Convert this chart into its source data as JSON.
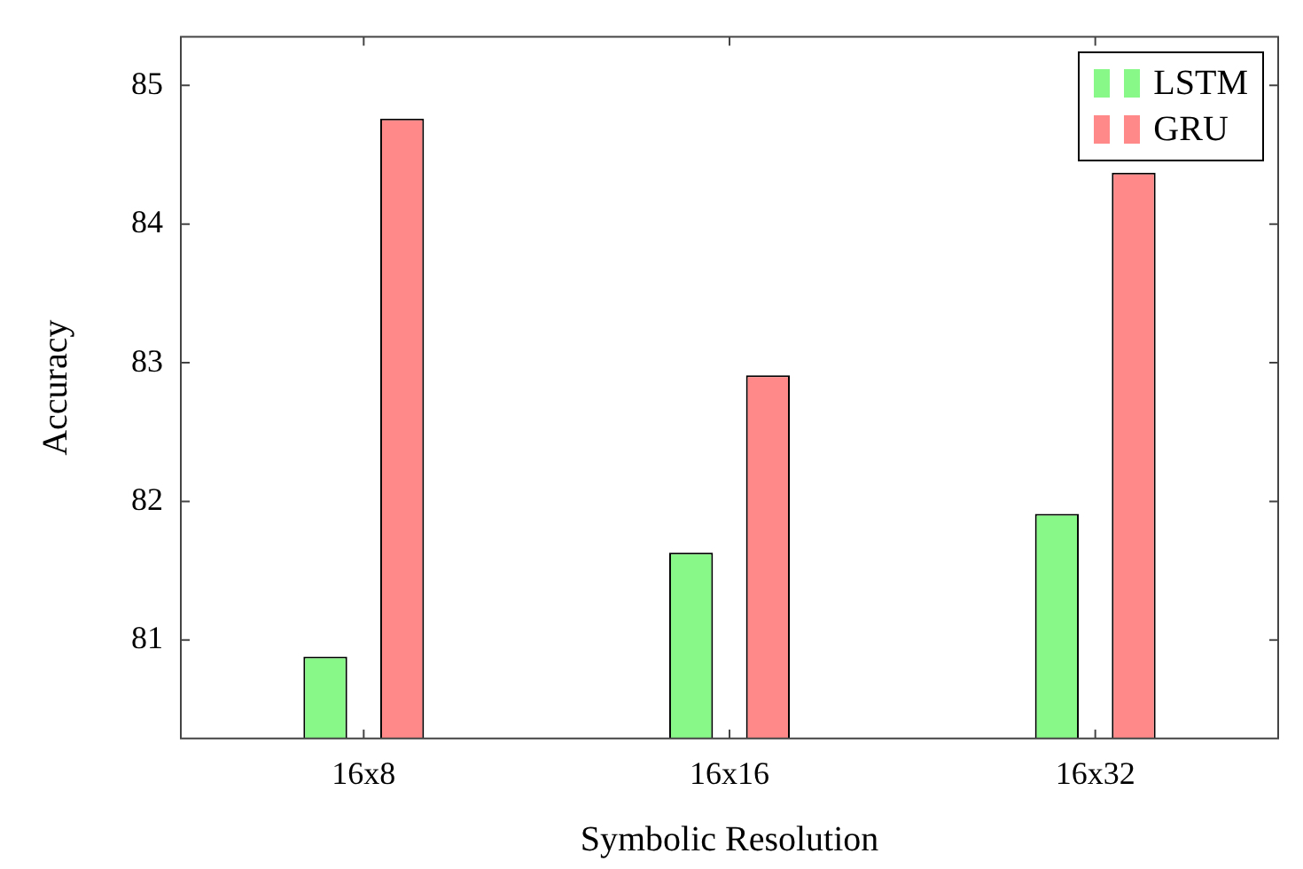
{
  "chart_data": {
    "type": "bar",
    "xlabel": "Symbolic Resolution",
    "ylabel": "Accuracy",
    "categories": [
      "16x8",
      "16x16",
      "16x32"
    ],
    "series": [
      {
        "name": "LSTM",
        "color": "#88f888",
        "values": [
          80.88,
          81.63,
          81.91
        ]
      },
      {
        "name": "GRU",
        "color": "#ff8888",
        "values": [
          84.76,
          82.91,
          84.37
        ]
      }
    ],
    "ylim": [
      80.29,
      85.35
    ],
    "yticks": [
      81,
      82,
      83,
      84,
      85
    ],
    "grid": false,
    "legend": "top right"
  }
}
